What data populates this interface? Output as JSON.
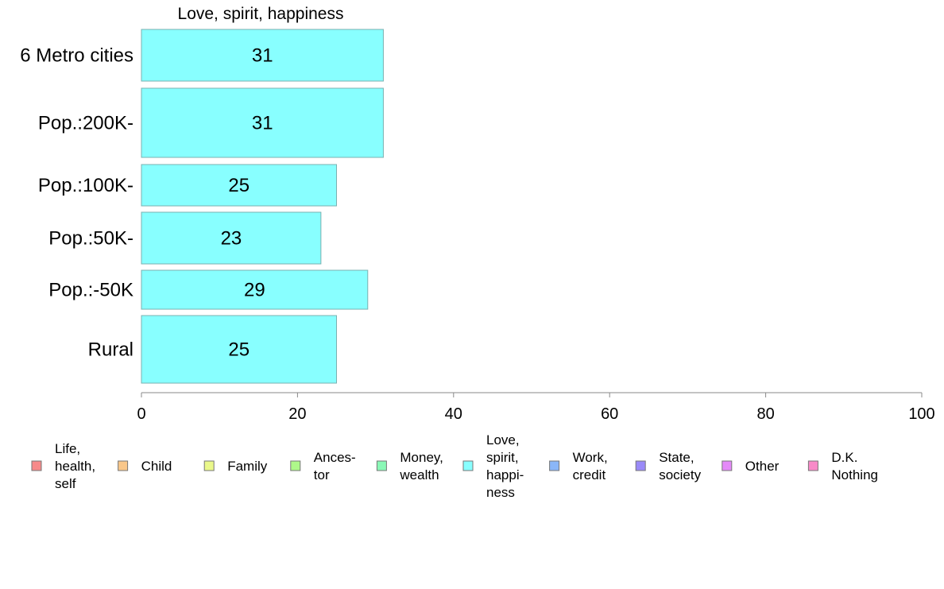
{
  "chart_data": {
    "type": "bar",
    "orientation": "horizontal",
    "title": "Love, spirit, happiness",
    "categories": [
      "6 Metro cities",
      "Pop.:200K-",
      "Pop.:100K-",
      "Pop.:50K-",
      "Pop.:-50K",
      "Rural"
    ],
    "values": [
      31,
      31,
      25,
      23,
      29,
      25
    ],
    "value_labels": [
      "31",
      "31",
      "25",
      "23",
      "29",
      "25"
    ],
    "xlim": [
      0,
      100
    ],
    "xticks": [
      0,
      20,
      40,
      60,
      80,
      100
    ],
    "xtick_labels": [
      "0",
      "20",
      "40",
      "60",
      "80",
      "100"
    ],
    "bar_color": "#88ffff",
    "bar_edge_color": "#7ab0b0",
    "grid": false,
    "legend_placement": "bottom",
    "legend": [
      {
        "lines": [
          "Life,",
          "health,",
          "self"
        ],
        "color": "#f78a8a"
      },
      {
        "lines": [
          "Child"
        ],
        "color": "#f9c78a"
      },
      {
        "lines": [
          "Family"
        ],
        "color": "#eaf88a"
      },
      {
        "lines": [
          "Ances-",
          "tor"
        ],
        "color": "#aef88a"
      },
      {
        "lines": [
          "Money,",
          "wealth"
        ],
        "color": "#8af8b6"
      },
      {
        "lines": [
          "Love,",
          "spirit,",
          "happi-",
          "ness"
        ],
        "color": "#88ffff"
      },
      {
        "lines": [
          "Work,",
          "credit"
        ],
        "color": "#8ab6f8"
      },
      {
        "lines": [
          "State,",
          "society"
        ],
        "color": "#9a8af8"
      },
      {
        "lines": [
          "Other"
        ],
        "color": "#e48af8"
      },
      {
        "lines": [
          "D.K.",
          "Nothing"
        ],
        "color": "#f88ac8"
      }
    ]
  }
}
